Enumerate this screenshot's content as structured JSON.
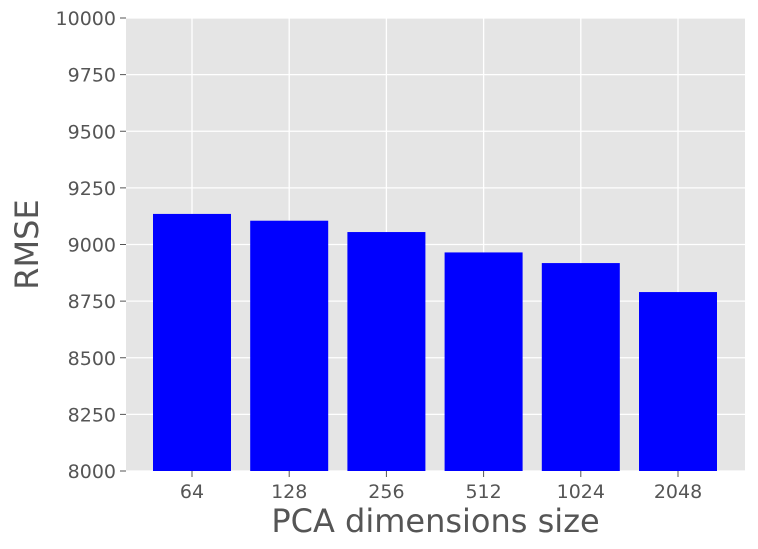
{
  "chart_data": {
    "type": "bar",
    "title": "",
    "xlabel": "PCA dimensions size",
    "ylabel": "RMSE",
    "categories": [
      "64",
      "128",
      "256",
      "512",
      "1024",
      "2048"
    ],
    "series": [
      {
        "values": [
          9135,
          9105,
          9055,
          8965,
          8918,
          8790
        ]
      }
    ],
    "ylim": [
      8000,
      10000
    ],
    "yticks": [
      8000,
      8250,
      8500,
      8750,
      9000,
      9250,
      9500,
      9750,
      10000
    ],
    "ytick_labels": [
      "8000",
      "8250",
      "8500",
      "8750",
      "9000",
      "9250",
      "9500",
      "9750",
      "10000"
    ],
    "grid": true,
    "legend": "none",
    "colors": {
      "bar": "#0000ff",
      "plot_background": "#e5e5e5",
      "grid": "#ffffff",
      "text": "#555555"
    }
  }
}
